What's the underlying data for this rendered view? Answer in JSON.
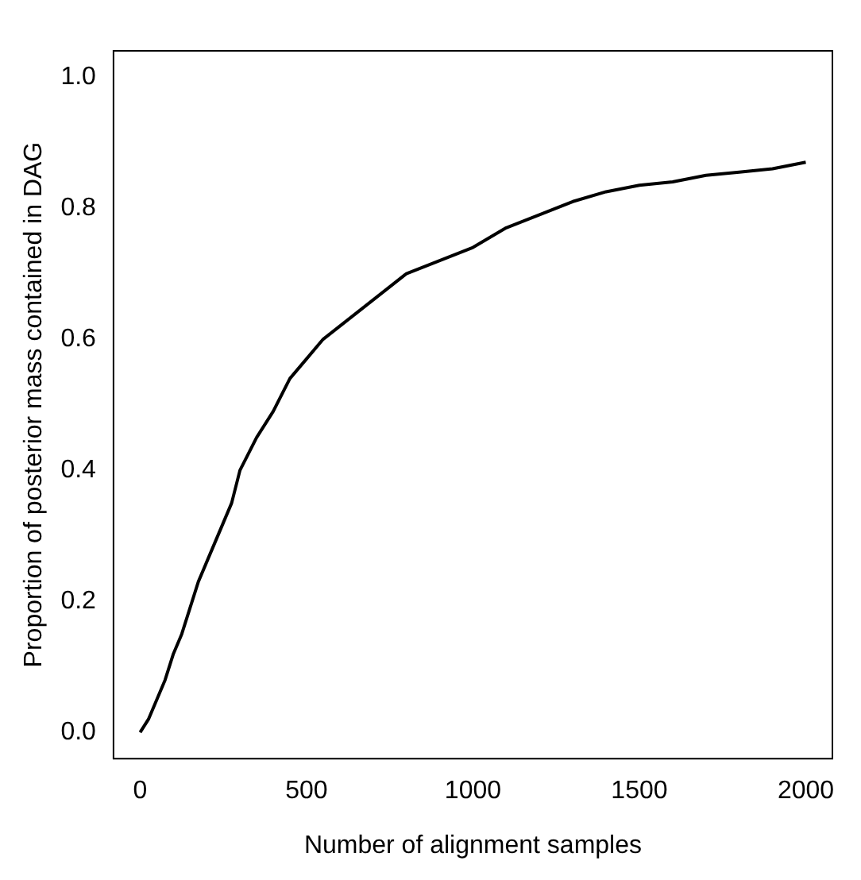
{
  "chart_data": {
    "type": "line",
    "xlabel": "Number of alignment samples",
    "ylabel": "Proportion of posterior mass contained in DAG",
    "x": [
      0,
      25,
      50,
      75,
      100,
      125,
      150,
      175,
      200,
      225,
      250,
      275,
      300,
      350,
      400,
      450,
      500,
      550,
      600,
      650,
      700,
      750,
      800,
      900,
      1000,
      1100,
      1200,
      1300,
      1400,
      1500,
      1600,
      1700,
      1800,
      1900,
      2000
    ],
    "series": [
      {
        "color": "#000000",
        "values": [
          0.0,
          0.02,
          0.05,
          0.08,
          0.12,
          0.15,
          0.19,
          0.23,
          0.26,
          0.29,
          0.32,
          0.35,
          0.4,
          0.45,
          0.49,
          0.54,
          0.57,
          0.6,
          0.62,
          0.64,
          0.66,
          0.68,
          0.7,
          0.72,
          0.74,
          0.77,
          0.79,
          0.81,
          0.825,
          0.835,
          0.84,
          0.85,
          0.855,
          0.86,
          0.87
        ]
      }
    ],
    "xlim": [
      -80,
      2080
    ],
    "xticks": [
      0,
      500,
      1000,
      1500,
      2000
    ],
    "ylim": [
      -0.04,
      1.04
    ],
    "yticks": [
      {
        "value": 0,
        "label": "0.0"
      },
      {
        "value": 0.2,
        "label": "0.2"
      },
      {
        "value": 0.4,
        "label": "0.4"
      },
      {
        "value": 0.6,
        "label": "0.6"
      },
      {
        "value": 0.8,
        "label": "0.8"
      },
      {
        "value": 1,
        "label": "1.0"
      }
    ],
    "grid": false,
    "legend": false,
    "marker": "none",
    "line_style": "solid"
  }
}
